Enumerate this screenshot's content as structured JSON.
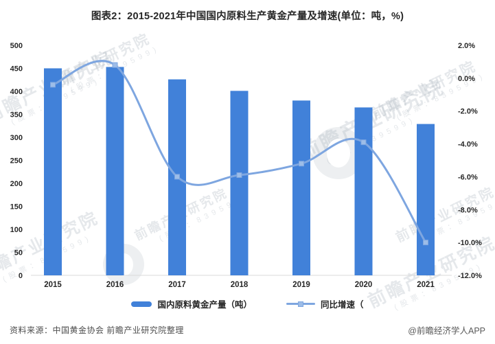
{
  "title": "图表2：2015-2021年中国国内原料生产黄金产量及增速(单位：吨，%)",
  "chart_data": {
    "type": "bar",
    "subtype": "combo-bar-line-dual-axis",
    "categories": [
      "2015",
      "2016",
      "2017",
      "2018",
      "2019",
      "2020",
      "2021"
    ],
    "series": [
      {
        "name": "国内原料黄金产量（吨）",
        "type": "bar",
        "axis": "left",
        "values": [
          450,
          453,
          426,
          401,
          380,
          365,
          329
        ],
        "color": "#4181d9"
      },
      {
        "name": "同比增速（",
        "type": "line",
        "axis": "right",
        "values": [
          -0.4,
          0.8,
          -6.0,
          -5.9,
          -5.2,
          -3.9,
          -10.0
        ],
        "color": "#7ea6e0",
        "marker_fill": "#9dbde8",
        "smooth": true
      }
    ],
    "left_axis": {
      "min": 0,
      "max": 500,
      "step": 50,
      "labels_top_to_bottom": [
        "500",
        "450",
        "400",
        "350",
        "300",
        "250",
        "200",
        "150",
        "100",
        "50",
        "0"
      ]
    },
    "right_axis": {
      "min": -12,
      "max": 2,
      "step": 2,
      "labels_top_to_bottom": [
        "2.0%",
        "0.0%",
        "-2.0%",
        "-4.0%",
        "-6.0%",
        "-8.0%",
        "-10.0%",
        "-12.0%"
      ]
    },
    "grid": false,
    "legend_position": "bottom",
    "axis_line_color": "#d9d9d9"
  },
  "legend": {
    "bar_label": "国内原料黄金产量（吨）",
    "line_label": "同比增速（"
  },
  "footer": {
    "source": "资料来源：中国黄金协会 前瞻产业研究院整理",
    "credit": "@前瞻经济学人APP"
  },
  "watermark": {
    "text": "前瞻产业研究院",
    "subtext": "(股票：839599)"
  }
}
